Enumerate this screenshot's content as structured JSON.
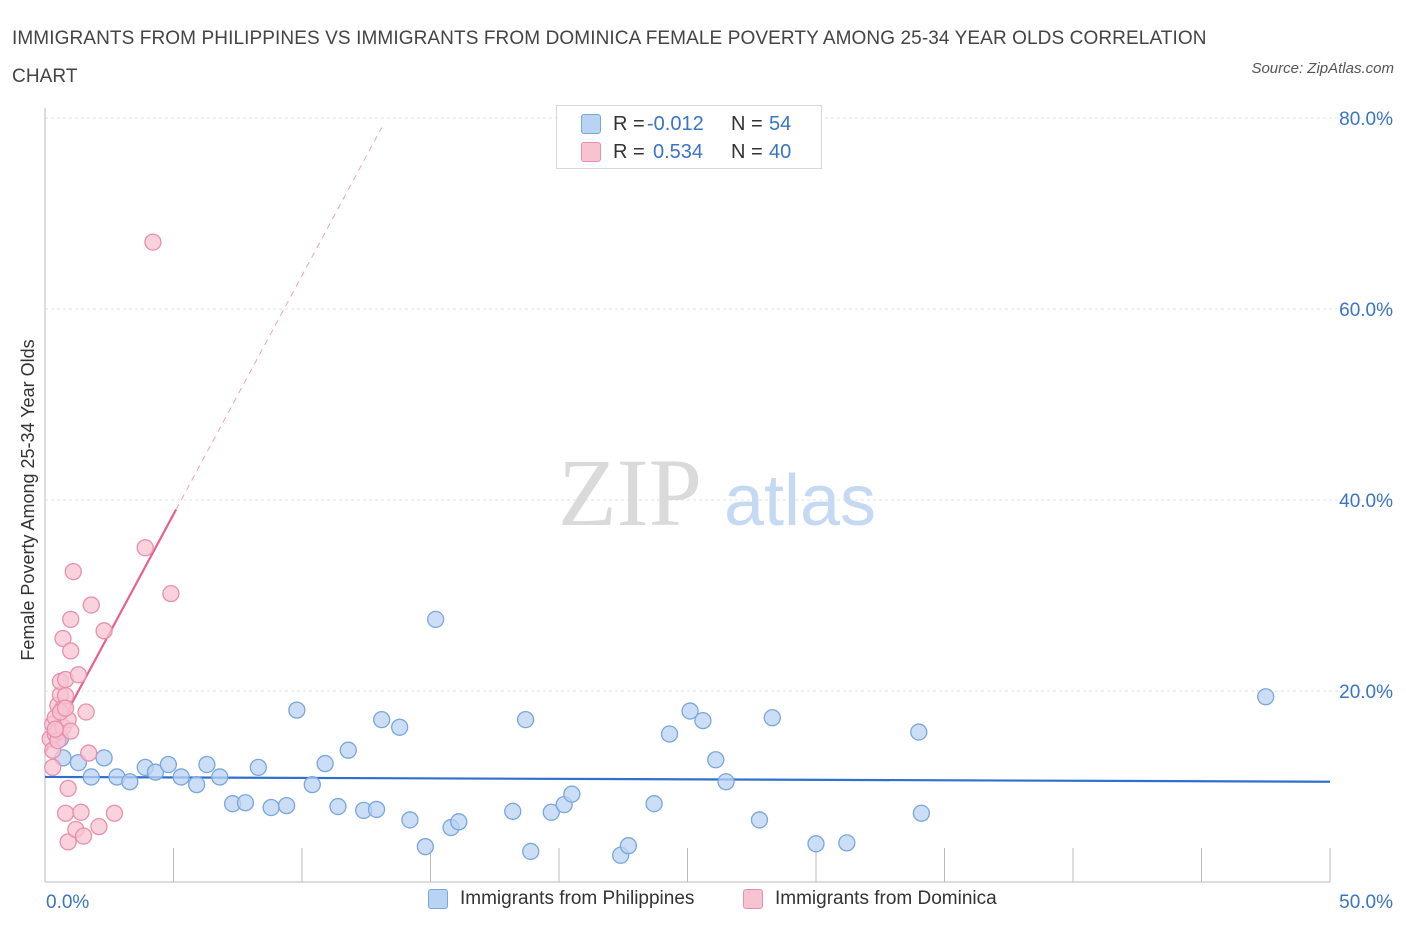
{
  "title": "IMMIGRANTS FROM PHILIPPINES VS IMMIGRANTS FROM DOMINICA FEMALE POVERTY AMONG 25-34 YEAR OLDS CORRELATION CHART",
  "source": "Source: ZipAtlas.com",
  "watermark": {
    "zip": "ZIP",
    "atlas": "atlas"
  },
  "legend": {
    "philippines": {
      "r_label": "R =",
      "r_value": "-0.012",
      "n_label": "N =",
      "n_value": "54"
    },
    "dominica": {
      "r_label": "R =",
      "r_value": "0.534",
      "n_label": "N =",
      "n_value": "40"
    }
  },
  "colors": {
    "philippines_fill": "#b9d3f3",
    "philippines_stroke": "#7aa6dc",
    "philippines_line": "#2f6fcf",
    "dominica_fill": "#f7c3d2",
    "dominica_stroke": "#e98fae",
    "dominica_line": "#e8608f",
    "axis_label": "#3a74c4"
  },
  "chart_data": {
    "type": "scatter",
    "title": "IMMIGRANTS FROM PHILIPPINES VS IMMIGRANTS FROM DOMINICA FEMALE POVERTY AMONG 25-34 YEAR OLDS CORRELATION CHART",
    "xlabel": "",
    "ylabel": "Female Poverty Among 25-34 Year Olds",
    "xlim": [
      0,
      50
    ],
    "ylim": [
      0,
      80
    ],
    "x_tick_labels": [
      "0.0%",
      "50.0%"
    ],
    "y_ticks": [
      20,
      40,
      60,
      80
    ],
    "y_tick_labels": [
      "20.0%",
      "40.0%",
      "60.0%",
      "80.0%"
    ],
    "grid": true,
    "series": [
      {
        "name": "Immigrants from Philippines",
        "trend": {
          "x0": 0,
          "y0": 11.0,
          "x1": 50,
          "y1": 10.5,
          "dashed_to": 50
        },
        "points": [
          [
            0.6,
            15.0
          ],
          [
            0.7,
            13.0
          ],
          [
            1.3,
            12.5
          ],
          [
            1.8,
            11.0
          ],
          [
            2.3,
            13.0
          ],
          [
            2.8,
            11.0
          ],
          [
            3.3,
            10.5
          ],
          [
            3.9,
            12.0
          ],
          [
            4.3,
            11.5
          ],
          [
            4.8,
            12.3
          ],
          [
            5.3,
            11.0
          ],
          [
            5.9,
            10.2
          ],
          [
            6.3,
            12.3
          ],
          [
            6.8,
            11.0
          ],
          [
            7.3,
            8.2
          ],
          [
            7.8,
            8.3
          ],
          [
            8.3,
            12.0
          ],
          [
            8.8,
            7.8
          ],
          [
            9.4,
            8.0
          ],
          [
            9.8,
            18.0
          ],
          [
            10.4,
            10.2
          ],
          [
            10.9,
            12.4
          ],
          [
            11.4,
            7.9
          ],
          [
            11.8,
            13.8
          ],
          [
            12.4,
            7.5
          ],
          [
            12.9,
            7.6
          ],
          [
            13.1,
            17.0
          ],
          [
            13.8,
            16.2
          ],
          [
            14.2,
            6.5
          ],
          [
            14.8,
            3.7
          ],
          [
            15.2,
            27.5
          ],
          [
            15.8,
            5.7
          ],
          [
            16.1,
            6.3
          ],
          [
            18.2,
            7.4
          ],
          [
            18.7,
            17.0
          ],
          [
            18.9,
            3.2
          ],
          [
            19.7,
            7.3
          ],
          [
            20.2,
            8.1
          ],
          [
            20.5,
            9.2
          ],
          [
            22.4,
            2.8
          ],
          [
            22.7,
            3.8
          ],
          [
            23.7,
            8.2
          ],
          [
            24.3,
            15.5
          ],
          [
            25.1,
            17.9
          ],
          [
            25.6,
            16.9
          ],
          [
            26.1,
            12.8
          ],
          [
            26.5,
            10.5
          ],
          [
            27.8,
            6.5
          ],
          [
            28.3,
            17.2
          ],
          [
            30.0,
            4.0
          ],
          [
            31.2,
            4.1
          ],
          [
            34.1,
            7.2
          ],
          [
            34.0,
            15.7
          ],
          [
            47.5,
            19.4
          ]
        ]
      },
      {
        "name": "Immigrants from Dominica",
        "trend": {
          "x0": 0,
          "y0": 13.5,
          "x1": 5.1,
          "y1": 39.0,
          "dashed_to": 13.1
        },
        "points": [
          [
            0.2,
            15.0
          ],
          [
            0.3,
            16.5
          ],
          [
            0.3,
            12.0
          ],
          [
            0.4,
            15.5
          ],
          [
            0.4,
            17.2
          ],
          [
            0.5,
            18.5
          ],
          [
            0.5,
            15.8
          ],
          [
            0.6,
            19.6
          ],
          [
            0.6,
            21.0
          ],
          [
            0.7,
            18.2
          ],
          [
            0.7,
            16.2
          ],
          [
            0.7,
            25.5
          ],
          [
            0.8,
            19.5
          ],
          [
            0.8,
            21.2
          ],
          [
            0.8,
            7.2
          ],
          [
            0.9,
            4.2
          ],
          [
            0.9,
            9.8
          ],
          [
            0.9,
            17.0
          ],
          [
            1.0,
            24.2
          ],
          [
            1.0,
            27.5
          ],
          [
            1.0,
            15.8
          ],
          [
            1.1,
            32.5
          ],
          [
            1.2,
            5.5
          ],
          [
            1.3,
            21.7
          ],
          [
            1.4,
            7.3
          ],
          [
            1.5,
            4.8
          ],
          [
            1.6,
            17.8
          ],
          [
            1.7,
            13.5
          ],
          [
            1.8,
            29.0
          ],
          [
            2.1,
            5.8
          ],
          [
            2.3,
            26.3
          ],
          [
            2.7,
            7.2
          ],
          [
            3.9,
            35.0
          ],
          [
            4.2,
            67.0
          ],
          [
            4.9,
            30.2
          ],
          [
            0.3,
            13.8
          ],
          [
            0.5,
            14.8
          ],
          [
            0.6,
            17.8
          ],
          [
            0.4,
            16.0
          ],
          [
            0.8,
            18.2
          ]
        ]
      }
    ]
  },
  "bottom_legend": {
    "philippines": "Immigrants from Philippines",
    "dominica": "Immigrants from Dominica"
  }
}
